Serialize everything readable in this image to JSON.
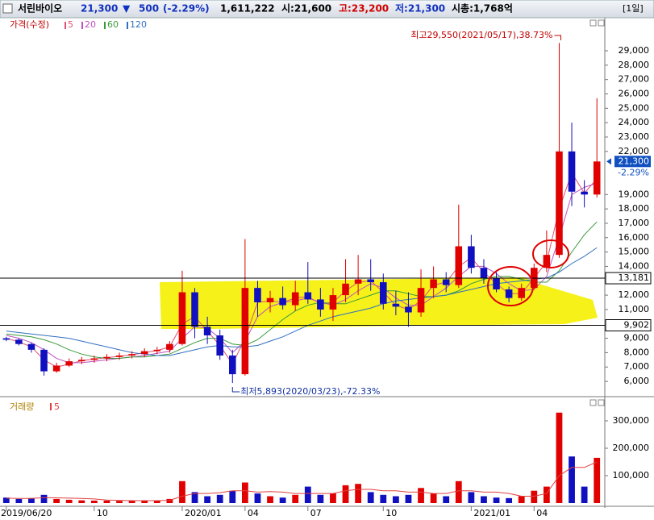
{
  "header": {
    "name": "서린바이오",
    "price": "21,300",
    "arrow": "▼",
    "change": "500",
    "change_pct": "(-2.29%)",
    "volume": "1,611,222",
    "open": "시:21,600",
    "high": "고:23,200",
    "low": "저:21,300",
    "cap": "시총:1,768억",
    "period": "[1일]"
  },
  "chart_data": [
    {
      "type": "candlestick",
      "legend_title": "가격(수정)",
      "categories": [
        "2019/06/20",
        null,
        null,
        null,
        null,
        null,
        null,
        "10",
        null,
        null,
        null,
        null,
        null,
        null,
        "2020/01",
        null,
        null,
        null,
        null,
        "04",
        null,
        null,
        null,
        null,
        "07",
        null,
        null,
        null,
        null,
        null,
        "10",
        null,
        null,
        null,
        null,
        null,
        null,
        "2021/01",
        null,
        null,
        null,
        null,
        "04",
        null,
        null,
        null,
        null,
        null
      ],
      "open": [
        9000,
        8900,
        8600,
        8200,
        6700,
        7100,
        7400,
        7500,
        7600,
        7700,
        7800,
        7900,
        8100,
        8200,
        8600,
        12200,
        9800,
        9200,
        7800,
        6500,
        12500,
        11500,
        11800,
        11300,
        12200,
        11700,
        11000,
        12000,
        12800,
        13100,
        12900,
        11400,
        11200,
        10800,
        12500,
        13100,
        12700,
        15400,
        13900,
        13200,
        12400,
        11800,
        12500,
        13900,
        14800,
        22000,
        19200,
        19000
      ],
      "high": [
        9100,
        9000,
        8700,
        8300,
        7300,
        7600,
        7700,
        7800,
        7900,
        8000,
        8100,
        8300,
        8400,
        8800,
        13700,
        12500,
        10500,
        9600,
        8200,
        15900,
        13000,
        12300,
        12600,
        13000,
        14300,
        12500,
        12500,
        14500,
        14800,
        14500,
        13500,
        12300,
        12200,
        13800,
        14000,
        13600,
        18300,
        16200,
        14500,
        13600,
        12600,
        12800,
        14200,
        16500,
        29550,
        24000,
        20000,
        25700
      ],
      "low": [
        8800,
        8500,
        8000,
        6400,
        6600,
        7000,
        7200,
        7300,
        7400,
        7500,
        7600,
        7700,
        7900,
        8000,
        8500,
        9000,
        8600,
        7500,
        5893,
        6400,
        10500,
        10800,
        11000,
        10900,
        11400,
        10500,
        10200,
        11500,
        12000,
        12300,
        11000,
        10600,
        9800,
        10500,
        11800,
        12200,
        12500,
        13500,
        12800,
        12200,
        11500,
        11600,
        12400,
        13600,
        14600,
        18200,
        18100,
        18800
      ],
      "close": [
        8900,
        8600,
        8200,
        6700,
        7100,
        7400,
        7500,
        7600,
        7700,
        7800,
        7900,
        8100,
        8200,
        8600,
        12200,
        9800,
        9200,
        7800,
        6500,
        12500,
        11500,
        11800,
        11300,
        12200,
        11700,
        11000,
        12000,
        12800,
        13100,
        12900,
        11400,
        11200,
        10800,
        12500,
        13100,
        12700,
        15400,
        13900,
        13200,
        12400,
        11800,
        12500,
        13900,
        14800,
        22000,
        19200,
        19000,
        21300
      ],
      "up_color": "#e00000",
      "down_color": "#1010c0",
      "series": [
        {
          "name": "5",
          "color": "#e05070",
          "values": [
            9000,
            8750,
            8400,
            7500,
            7000,
            7200,
            7450,
            7550,
            7650,
            7750,
            7850,
            8000,
            8150,
            8400,
            10000,
            10500,
            9500,
            8500,
            7200,
            9000,
            11500,
            11600,
            11500,
            11800,
            11900,
            11400,
            11500,
            12300,
            12900,
            13000,
            12200,
            11300,
            11000,
            11600,
            12700,
            12900,
            14000,
            14600,
            13600,
            12800,
            12100,
            12100,
            13200,
            14300,
            18000,
            20500,
            19100,
            20100
          ]
        },
        {
          "name": "20",
          "color": "#c050c0",
          "values": [
            9200,
            9000,
            8700,
            8200,
            7600,
            7300,
            7300,
            7400,
            7500,
            7600,
            7700,
            7800,
            7950,
            8100,
            9000,
            9800,
            9700,
            9000,
            8000,
            8800,
            10500,
            11200,
            11500,
            11600,
            11800,
            11500,
            11300,
            11700,
            12300,
            12800,
            12500,
            11800,
            11300,
            11300,
            11900,
            12500,
            13300,
            14000,
            14000,
            13500,
            12800,
            12300,
            12400,
            13300,
            16000,
            19000,
            19500,
            19800
          ]
        },
        {
          "name": "60",
          "color": "#3a9a3a",
          "values": [
            9300,
            9200,
            9100,
            8900,
            8600,
            8200,
            7900,
            7700,
            7600,
            7600,
            7700,
            7700,
            7800,
            7900,
            8300,
            8700,
            9000,
            9000,
            8600,
            8500,
            8900,
            9600,
            10300,
            10900,
            11300,
            11500,
            11400,
            11400,
            11700,
            12000,
            12300,
            12300,
            12100,
            11900,
            11900,
            12000,
            12300,
            12800,
            13100,
            13300,
            13300,
            13100,
            12900,
            12900,
            13700,
            15000,
            16200,
            17100
          ]
        },
        {
          "name": "120",
          "color": "#3070c0",
          "values": [
            9500,
            9400,
            9300,
            9200,
            9100,
            9000,
            8800,
            8600,
            8400,
            8200,
            8000,
            7900,
            7800,
            7800,
            8000,
            8200,
            8400,
            8500,
            8400,
            8400,
            8500,
            8800,
            9100,
            9500,
            9900,
            10200,
            10500,
            10700,
            10900,
            11100,
            11400,
            11600,
            11700,
            11800,
            11900,
            12000,
            12200,
            12400,
            12600,
            12800,
            12900,
            13000,
            13100,
            13200,
            13600,
            14200,
            14700,
            15300
          ]
        }
      ],
      "ylim": [
        5050,
        31300
      ],
      "yticks": [
        {
          "value": 6000,
          "label": "6,000"
        },
        {
          "value": 7000,
          "label": "7,000"
        },
        {
          "value": 8000,
          "label": "8,000"
        },
        {
          "value": 9000,
          "label": "9,000"
        },
        {
          "value": 11000,
          "label": "11,000"
        },
        {
          "value": 12000,
          "label": "12,000"
        },
        {
          "value": 14000,
          "label": "14,000"
        },
        {
          "value": 15000,
          "label": "15,000"
        },
        {
          "value": 16000,
          "label": "16,000"
        },
        {
          "value": 17000,
          "label": "17,000"
        },
        {
          "value": 18000,
          "label": "18,000"
        },
        {
          "value": 19000,
          "label": "19,000"
        },
        {
          "value": 22000,
          "label": "22,000"
        },
        {
          "value": 23000,
          "label": "23,000"
        },
        {
          "value": 24000,
          "label": "24,000"
        },
        {
          "value": 25000,
          "label": "25,000"
        },
        {
          "value": 26000,
          "label": "26,000"
        },
        {
          "value": 27000,
          "label": "27,000"
        },
        {
          "value": 28000,
          "label": "28,000"
        },
        {
          "value": 29000,
          "label": "29,000"
        }
      ],
      "levels": [
        {
          "value": 13181,
          "label": "13,181"
        },
        {
          "value": 9902,
          "label": "9,902"
        }
      ],
      "current": {
        "value": 21300,
        "label": "21,300",
        "change": "-2.29%"
      },
      "annotations": [
        "최고29,550(2021/05/17),38.73%",
        "최저5,893(2020/03/23),-72.33%"
      ]
    },
    {
      "type": "bar",
      "legend_title": "거래량",
      "values": [
        20000,
        15000,
        18000,
        30000,
        15000,
        12000,
        10000,
        9000,
        9000,
        8000,
        8000,
        9000,
        10000,
        15000,
        80000,
        40000,
        25000,
        30000,
        45000,
        75000,
        35000,
        25000,
        20000,
        30000,
        60000,
        30000,
        35000,
        65000,
        70000,
        40000,
        30000,
        25000,
        30000,
        55000,
        35000,
        25000,
        80000,
        40000,
        25000,
        20000,
        18000,
        25000,
        45000,
        60000,
        330000,
        170000,
        60000,
        165000
      ],
      "series": [
        {
          "name": "5",
          "color": "#e04040",
          "values": [
            18000,
            17000,
            17000,
            20000,
            19000,
            18000,
            17000,
            15000,
            11000,
            10000,
            9000,
            9000,
            9000,
            10000,
            25000,
            35000,
            35000,
            38000,
            45000,
            45000,
            40000,
            42000,
            40000,
            35000,
            35000,
            35000,
            35000,
            45000,
            50000,
            50000,
            45000,
            45000,
            40000,
            40000,
            35000,
            35000,
            45000,
            45000,
            40000,
            40000,
            35000,
            25000,
            25000,
            35000,
            100000,
            130000,
            130000,
            150000
          ]
        }
      ],
      "ylim": [
        0,
        364700
      ],
      "yticks": [
        {
          "value": 100000,
          "label": "100,000"
        },
        {
          "value": 200000,
          "label": "200,000"
        },
        {
          "value": 300000,
          "label": "300,000"
        }
      ]
    }
  ]
}
